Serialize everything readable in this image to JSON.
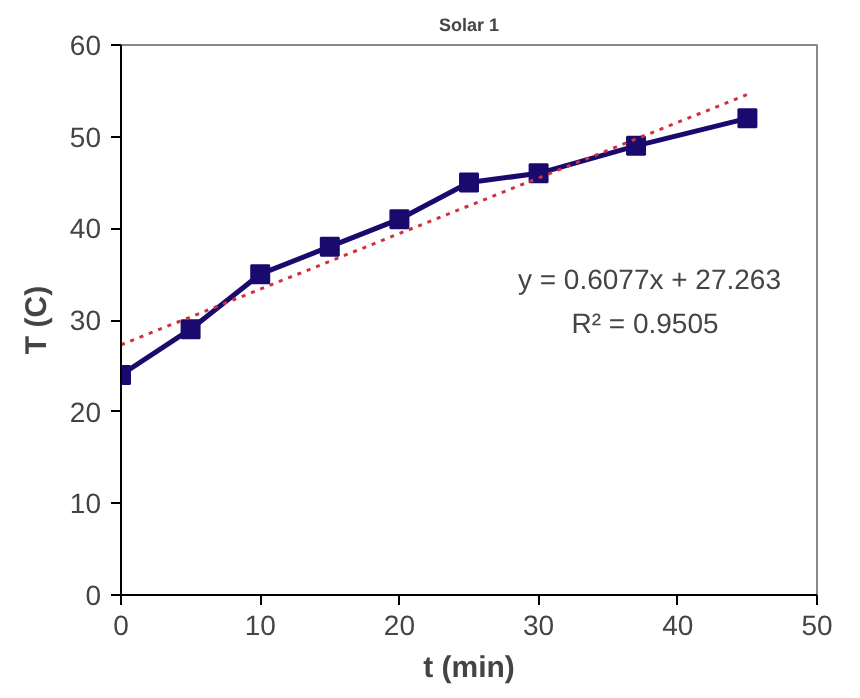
{
  "chart_data": {
    "type": "line",
    "title": "Solar 1",
    "xlabel": "t (min)",
    "ylabel": "T (C)",
    "xlim": [
      0,
      50
    ],
    "ylim": [
      0,
      60
    ],
    "xticks": [
      0,
      10,
      20,
      30,
      40,
      50
    ],
    "yticks": [
      0,
      10,
      20,
      30,
      40,
      50,
      60
    ],
    "grid": false,
    "marker": "square",
    "line_style": "solid",
    "series": [
      {
        "color": "#1a0a6e",
        "x": [
          0,
          5,
          10,
          15,
          20,
          25,
          30,
          37,
          45
        ],
        "values": [
          24,
          29,
          35,
          38,
          41,
          45,
          46,
          49,
          52
        ]
      },
      {
        "type": "line",
        "color": "#d0303c",
        "line_style": "dotted",
        "marker": "none",
        "x": [
          0,
          45
        ],
        "values": [
          27.3,
          54.6
        ]
      }
    ],
    "annotations": [
      "y = 0.6077x + 27.263",
      "R² = 0.9505"
    ]
  }
}
